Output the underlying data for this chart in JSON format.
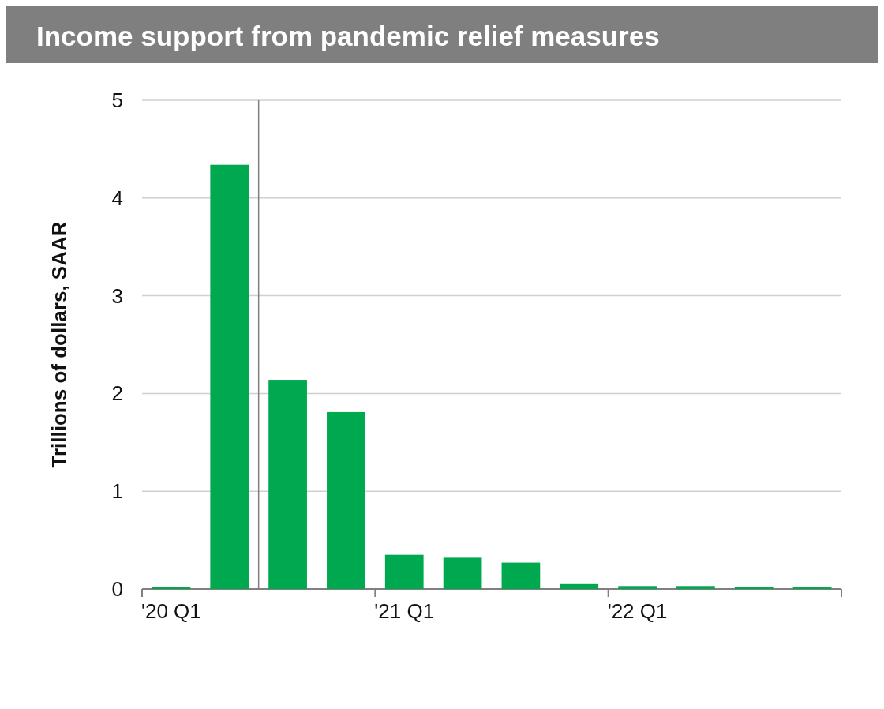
{
  "chart_data": {
    "type": "bar",
    "title": "Income support from pandemic relief measures",
    "ylabel": "Trillions of dollars, SAAR",
    "categories": [
      "'20 Q1",
      null,
      null,
      null,
      "'21 Q1",
      null,
      null,
      null,
      "'22 Q1",
      null,
      null,
      null
    ],
    "values": [
      0.02,
      4.34,
      2.14,
      1.81,
      0.35,
      0.32,
      0.27,
      0.05,
      0.03,
      0.03,
      0.02,
      0.02
    ],
    "color": "#00a84f",
    "ylim": [
      0,
      5
    ],
    "yticks": [
      0,
      1,
      2,
      3,
      4,
      5
    ],
    "grid": "y"
  }
}
